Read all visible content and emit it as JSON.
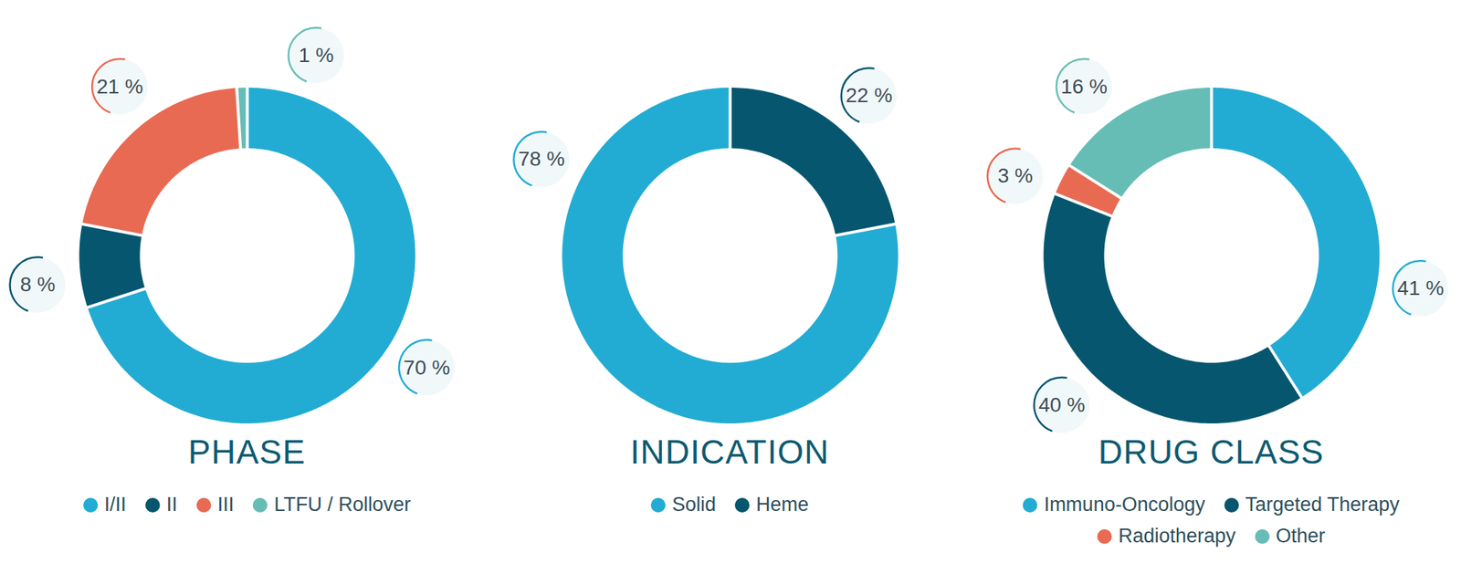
{
  "chart_data": [
    {
      "type": "donut",
      "title": "PHASE",
      "categories": [
        "I/II",
        "II",
        "III",
        "LTFU / Rollover"
      ],
      "values": [
        70,
        8,
        21,
        1
      ],
      "value_labels": [
        "70 %",
        "8 %",
        "21 %",
        "1 %"
      ],
      "colors": [
        "#22acd3",
        "#05566e",
        "#e86a53",
        "#66bdb5"
      ],
      "data_labels": true,
      "legend": "bottom"
    },
    {
      "type": "donut",
      "title": "INDICATION",
      "categories": [
        "Solid",
        "Heme"
      ],
      "values": [
        78,
        22
      ],
      "value_labels": [
        "78 %",
        "22 %"
      ],
      "colors": [
        "#22acd3",
        "#05566e"
      ],
      "data_labels": true,
      "legend": "bottom"
    },
    {
      "type": "donut",
      "title": "DRUG CLASS",
      "categories": [
        "Immuno-Oncology",
        "Targeted Therapy",
        "Radiotherapy",
        "Other"
      ],
      "values": [
        41,
        40,
        3,
        16
      ],
      "value_labels": [
        "41 %",
        "40 %",
        "3 %",
        "16 %"
      ],
      "colors": [
        "#22acd3",
        "#05566e",
        "#e86a53",
        "#66bdb5"
      ],
      "data_labels": true,
      "legend": "bottom"
    }
  ]
}
